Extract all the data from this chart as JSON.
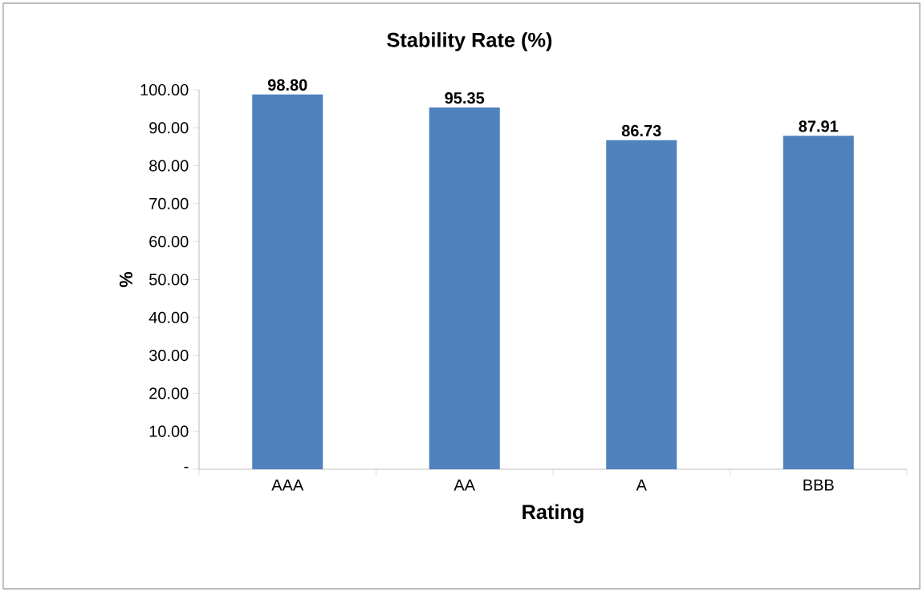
{
  "chart_data": {
    "type": "bar",
    "title": "Stability Rate (%)",
    "xlabel": "Rating",
    "ylabel": "%",
    "categories": [
      "AAA",
      "AA",
      "A",
      "BBB"
    ],
    "values": [
      98.8,
      95.35,
      86.73,
      87.91
    ],
    "value_labels": [
      "98.80",
      "95.35",
      "86.73",
      "87.91"
    ],
    "color": "#4f81bd",
    "ylim": [
      0,
      100
    ],
    "yticks": [
      {
        "value": 0,
        "label": "-"
      },
      {
        "value": 10,
        "label": "10.00"
      },
      {
        "value": 20,
        "label": "20.00"
      },
      {
        "value": 30,
        "label": "30.00"
      },
      {
        "value": 40,
        "label": "40.00"
      },
      {
        "value": 50,
        "label": "50.00"
      },
      {
        "value": 60,
        "label": "60.00"
      },
      {
        "value": 70,
        "label": "70.00"
      },
      {
        "value": 80,
        "label": "80.00"
      },
      {
        "value": 90,
        "label": "90.00"
      },
      {
        "value": 100,
        "label": "100.00"
      }
    ],
    "grid": false
  }
}
